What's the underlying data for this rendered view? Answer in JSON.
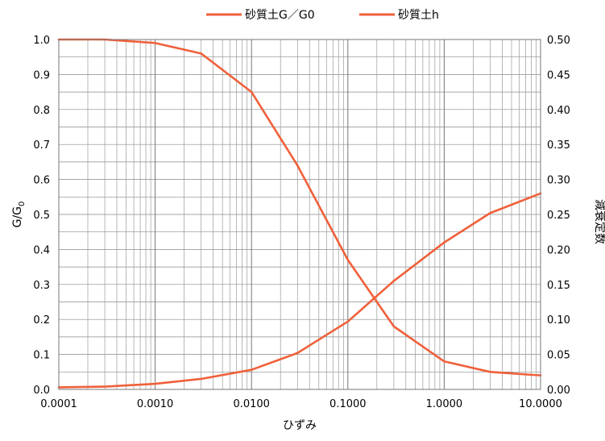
{
  "chart_data": {
    "type": "line",
    "x_scale": "log",
    "xlim": [
      0.0001,
      10
    ],
    "ylim_left": [
      0,
      1.0
    ],
    "ylim_right": [
      0,
      0.5
    ],
    "grid": true,
    "legend_position": "top",
    "xlabel": "ひずみ",
    "ylabel_left": {
      "main": "G/G",
      "sub": "0"
    },
    "ylabel_right": "減衰定数",
    "x_tick_labels": [
      "0.0001",
      "0.0010",
      "0.0100",
      "0.1000",
      "1.0000",
      "10.0000"
    ],
    "y_left_tick_labels": [
      "0.0",
      "0.1",
      "0.2",
      "0.3",
      "0.4",
      "0.5",
      "0.6",
      "0.7",
      "0.8",
      "0.9",
      "1.0"
    ],
    "y_right_tick_labels": [
      "0.00",
      "0.05",
      "0.10",
      "0.15",
      "0.20",
      "0.25",
      "0.30",
      "0.35",
      "0.40",
      "0.45",
      "0.50"
    ],
    "series": [
      {
        "name": "砂質土G／G0",
        "axis": "left",
        "color": "#f0603a",
        "x": [
          0.0001,
          0.0003,
          0.001,
          0.003,
          0.01,
          0.03,
          0.1,
          0.3,
          1,
          3,
          10
        ],
        "y": [
          1.0,
          1.0,
          0.99,
          0.96,
          0.85,
          0.64,
          0.37,
          0.18,
          0.08,
          0.05,
          0.04
        ]
      },
      {
        "name": "砂質土h",
        "axis": "right",
        "color": "#f0603a",
        "x": [
          0.0001,
          0.0003,
          0.001,
          0.003,
          0.01,
          0.03,
          0.1,
          0.3,
          1,
          3,
          10
        ],
        "y": [
          0.003,
          0.004,
          0.008,
          0.015,
          0.028,
          0.052,
          0.097,
          0.155,
          0.21,
          0.252,
          0.28
        ]
      }
    ]
  }
}
